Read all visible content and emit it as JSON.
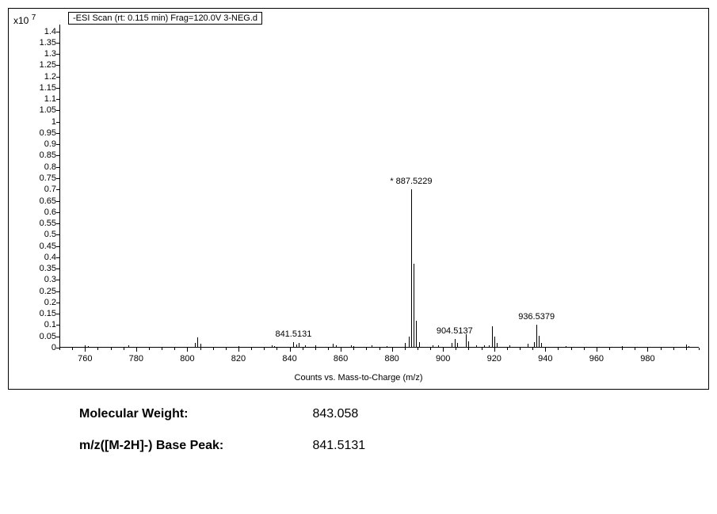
{
  "chart": {
    "type": "mass-spectrum",
    "exponent_label": "x10",
    "exponent_sup": "7",
    "title": "-ESI Scan (rt: 0.115 min) Frag=120.0V 3-NEG.d",
    "x_axis_label": "Counts vs. Mass-to-Charge (m/z)",
    "background_color": "#ffffff",
    "line_color": "#000000",
    "text_color": "#000000",
    "font_size_ticks": 11,
    "xlim": [
      750,
      1000
    ],
    "ylim": [
      0,
      1.43
    ],
    "x_ticks": [
      760,
      780,
      800,
      820,
      840,
      860,
      880,
      900,
      920,
      940,
      960,
      980
    ],
    "x_minor_step": 5,
    "y_ticks": [
      0,
      0.05,
      0.1,
      0.15,
      0.2,
      0.25,
      0.3,
      0.35,
      0.4,
      0.45,
      0.5,
      0.55,
      0.6,
      0.65,
      0.7,
      0.75,
      0.8,
      0.85,
      0.9,
      0.95,
      1,
      1.05,
      1.1,
      1.15,
      1.2,
      1.25,
      1.3,
      1.35,
      1.4
    ],
    "labeled_peaks": [
      {
        "mz": 887.5229,
        "intensity": 0.7,
        "label": "887.5229",
        "marker": "*"
      },
      {
        "mz": 841.5131,
        "intensity": 0.025,
        "label": "841.5131"
      },
      {
        "mz": 904.5137,
        "intensity": 0.04,
        "label": "904.5137"
      },
      {
        "mz": 936.5379,
        "intensity": 0.1,
        "label": "936.5379"
      }
    ],
    "peaks": [
      {
        "mz": 760,
        "intensity": 0.012
      },
      {
        "mz": 761,
        "intensity": 0.006
      },
      {
        "mz": 777,
        "intensity": 0.01
      },
      {
        "mz": 778,
        "intensity": 0.005
      },
      {
        "mz": 803,
        "intensity": 0.02
      },
      {
        "mz": 804,
        "intensity": 0.045
      },
      {
        "mz": 805,
        "intensity": 0.018
      },
      {
        "mz": 820,
        "intensity": 0.008
      },
      {
        "mz": 833,
        "intensity": 0.012
      },
      {
        "mz": 834,
        "intensity": 0.008
      },
      {
        "mz": 841.5,
        "intensity": 0.025
      },
      {
        "mz": 842.5,
        "intensity": 0.015
      },
      {
        "mz": 843.5,
        "intensity": 0.02
      },
      {
        "mz": 846,
        "intensity": 0.01
      },
      {
        "mz": 850,
        "intensity": 0.012
      },
      {
        "mz": 857,
        "intensity": 0.016
      },
      {
        "mz": 858,
        "intensity": 0.01
      },
      {
        "mz": 864,
        "intensity": 0.012
      },
      {
        "mz": 865,
        "intensity": 0.008
      },
      {
        "mz": 872,
        "intensity": 0.01
      },
      {
        "mz": 878,
        "intensity": 0.008
      },
      {
        "mz": 885,
        "intensity": 0.02
      },
      {
        "mz": 886.5,
        "intensity": 0.05
      },
      {
        "mz": 887.5,
        "intensity": 0.7
      },
      {
        "mz": 888.5,
        "intensity": 0.37
      },
      {
        "mz": 889.5,
        "intensity": 0.12
      },
      {
        "mz": 890.5,
        "intensity": 0.025
      },
      {
        "mz": 896,
        "intensity": 0.01
      },
      {
        "mz": 898,
        "intensity": 0.012
      },
      {
        "mz": 903.5,
        "intensity": 0.022
      },
      {
        "mz": 904.5,
        "intensity": 0.04
      },
      {
        "mz": 905.5,
        "intensity": 0.022
      },
      {
        "mz": 909,
        "intensity": 0.06
      },
      {
        "mz": 910,
        "intensity": 0.028
      },
      {
        "mz": 913,
        "intensity": 0.01
      },
      {
        "mz": 916,
        "intensity": 0.012
      },
      {
        "mz": 918,
        "intensity": 0.01
      },
      {
        "mz": 919,
        "intensity": 0.095
      },
      {
        "mz": 920,
        "intensity": 0.05
      },
      {
        "mz": 921,
        "intensity": 0.02
      },
      {
        "mz": 926,
        "intensity": 0.01
      },
      {
        "mz": 933,
        "intensity": 0.018
      },
      {
        "mz": 935.5,
        "intensity": 0.025
      },
      {
        "mz": 936.5,
        "intensity": 0.1
      },
      {
        "mz": 937.5,
        "intensity": 0.052
      },
      {
        "mz": 938.5,
        "intensity": 0.02
      },
      {
        "mz": 948,
        "intensity": 0.006
      },
      {
        "mz": 970,
        "intensity": 0.006
      },
      {
        "mz": 995,
        "intensity": 0.014
      },
      {
        "mz": 996,
        "intensity": 0.008
      }
    ]
  },
  "info": {
    "mw_label": "Molecular Weight:",
    "mw_value": "843.058",
    "base_label": "m/z([M-2H]-) Base Peak:",
    "base_value": "841.5131"
  }
}
